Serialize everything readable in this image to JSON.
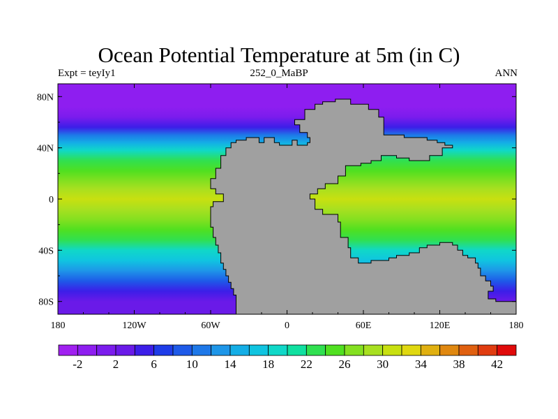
{
  "title": "Ocean Potential Temperature at 5m (in C)",
  "subtitle_left": "Expt = teyIy1",
  "subtitle_center": "252_0_MaBP",
  "subtitle_right": "ANN",
  "land_color": "#a0a0a0",
  "chart_data": {
    "type": "heatmap",
    "projection": "cylindrical-equidistant",
    "variable": "Ocean Potential Temperature at 5m",
    "units": "C",
    "x_range": [
      180,
      -180
    ],
    "y_range": [
      -90,
      90
    ],
    "x_ticks": [
      {
        "value": -180,
        "label": "180"
      },
      {
        "value": -120,
        "label": "120W"
      },
      {
        "value": -60,
        "label": "60W"
      },
      {
        "value": 0,
        "label": "0"
      },
      {
        "value": 60,
        "label": "60E"
      },
      {
        "value": 120,
        "label": "120E"
      },
      {
        "value": 180,
        "label": "180"
      }
    ],
    "y_ticks": [
      {
        "value": 80,
        "label": "80N"
      },
      {
        "value": 40,
        "label": "40N"
      },
      {
        "value": 0,
        "label": "0"
      },
      {
        "value": -40,
        "label": "40S"
      },
      {
        "value": -80,
        "label": "80S"
      }
    ],
    "colorbar": {
      "min": -4,
      "max": 44,
      "step": 2,
      "labeled_values": [
        -2,
        2,
        6,
        10,
        14,
        18,
        22,
        26,
        30,
        34,
        38,
        42
      ],
      "labels": [
        "-2",
        "2",
        "6",
        "10",
        "14",
        "18",
        "22",
        "26",
        "30",
        "34",
        "38",
        "42"
      ],
      "colors": [
        "#a020f0",
        "#8e1ef0",
        "#7b1ced",
        "#6a1ae8",
        "#3c1ee8",
        "#1e3ce8",
        "#1e5ae8",
        "#1e78e8",
        "#1e96e8",
        "#14aee6",
        "#10c4e0",
        "#10d8c8",
        "#10e0a0",
        "#30e050",
        "#50e020",
        "#84e020",
        "#a8e020",
        "#c8e010",
        "#e0d810",
        "#e0b010",
        "#e08810",
        "#e06010",
        "#e03c10",
        "#e00a0a"
      ]
    },
    "temperature_profile": [
      {
        "lat": 90,
        "temp": -2
      },
      {
        "lat": 80,
        "temp": -2
      },
      {
        "lat": 72,
        "temp": -1
      },
      {
        "lat": 64,
        "temp": 1
      },
      {
        "lat": 56,
        "temp": 5
      },
      {
        "lat": 50,
        "temp": 10
      },
      {
        "lat": 44,
        "temp": 15
      },
      {
        "lat": 38,
        "temp": 18.5
      },
      {
        "lat": 30,
        "temp": 22
      },
      {
        "lat": 22,
        "temp": 25
      },
      {
        "lat": 14,
        "temp": 27
      },
      {
        "lat": 8,
        "temp": 29
      },
      {
        "lat": 0,
        "temp": 30
      },
      {
        "lat": -8,
        "temp": 29
      },
      {
        "lat": -16,
        "temp": 27
      },
      {
        "lat": -24,
        "temp": 25
      },
      {
        "lat": -32,
        "temp": 22
      },
      {
        "lat": -40,
        "temp": 19
      },
      {
        "lat": -48,
        "temp": 16
      },
      {
        "lat": -56,
        "temp": 12
      },
      {
        "lat": -64,
        "temp": 8
      },
      {
        "lat": -72,
        "temp": 5
      },
      {
        "lat": -80,
        "temp": 3
      },
      {
        "lat": -90,
        "temp": 2
      }
    ],
    "land_mass": [
      [
        -40,
        -80
      ],
      [
        -40,
        -75
      ],
      [
        -42,
        -75
      ],
      [
        -42,
        -70
      ],
      [
        -44,
        -70
      ],
      [
        -44,
        -65
      ],
      [
        -46,
        -65
      ],
      [
        -46,
        -60
      ],
      [
        -48,
        -60
      ],
      [
        -48,
        -55
      ],
      [
        -50,
        -55
      ],
      [
        -50,
        -50
      ],
      [
        -52,
        -50
      ],
      [
        -52,
        -42
      ],
      [
        -54,
        -42
      ],
      [
        -54,
        -36
      ],
      [
        -56,
        -36
      ],
      [
        -56,
        -30
      ],
      [
        -58,
        -30
      ],
      [
        -58,
        -22
      ],
      [
        -60,
        -22
      ],
      [
        -60,
        -6
      ],
      [
        -58,
        -6
      ],
      [
        -58,
        -2
      ],
      [
        -50,
        -2
      ],
      [
        -50,
        4
      ],
      [
        -56,
        4
      ],
      [
        -56,
        8
      ],
      [
        -60,
        8
      ],
      [
        -60,
        16
      ],
      [
        -56,
        16
      ],
      [
        -56,
        24
      ],
      [
        -52,
        24
      ],
      [
        -52,
        34
      ],
      [
        -48,
        34
      ],
      [
        -48,
        40
      ],
      [
        -44,
        40
      ],
      [
        -44,
        44
      ],
      [
        -40,
        44
      ],
      [
        -40,
        46
      ],
      [
        -32,
        46
      ],
      [
        -32,
        48
      ],
      [
        -22,
        48
      ],
      [
        -22,
        44
      ],
      [
        -18,
        44
      ],
      [
        -18,
        48
      ],
      [
        -10,
        48
      ],
      [
        -10,
        44
      ],
      [
        -6,
        44
      ],
      [
        -6,
        42
      ],
      [
        4,
        42
      ],
      [
        4,
        46
      ],
      [
        8,
        46
      ],
      [
        8,
        42
      ],
      [
        16,
        42
      ],
      [
        16,
        44
      ],
      [
        18,
        44
      ],
      [
        18,
        48
      ],
      [
        16,
        48
      ],
      [
        16,
        52
      ],
      [
        10,
        52
      ],
      [
        10,
        58
      ],
      [
        6,
        58
      ],
      [
        6,
        62
      ],
      [
        14,
        62
      ],
      [
        14,
        70
      ],
      [
        22,
        70
      ],
      [
        22,
        74
      ],
      [
        28,
        74
      ],
      [
        28,
        76
      ],
      [
        38,
        76
      ],
      [
        38,
        78
      ],
      [
        50,
        78
      ],
      [
        50,
        74
      ],
      [
        64,
        74
      ],
      [
        64,
        70
      ],
      [
        72,
        70
      ],
      [
        72,
        64
      ],
      [
        76,
        64
      ],
      [
        76,
        50
      ],
      [
        92,
        50
      ],
      [
        92,
        48
      ],
      [
        110,
        48
      ],
      [
        110,
        46
      ],
      [
        118,
        46
      ],
      [
        118,
        44
      ],
      [
        124,
        44
      ],
      [
        124,
        42
      ],
      [
        130,
        42
      ],
      [
        130,
        40
      ],
      [
        122,
        40
      ],
      [
        122,
        34
      ],
      [
        112,
        34
      ],
      [
        112,
        30
      ],
      [
        96,
        30
      ],
      [
        96,
        32
      ],
      [
        86,
        32
      ],
      [
        86,
        34
      ],
      [
        74,
        34
      ],
      [
        74,
        30
      ],
      [
        66,
        30
      ],
      [
        66,
        28
      ],
      [
        58,
        28
      ],
      [
        58,
        26
      ],
      [
        46,
        26
      ],
      [
        46,
        18
      ],
      [
        40,
        18
      ],
      [
        40,
        12
      ],
      [
        30,
        12
      ],
      [
        30,
        8
      ],
      [
        24,
        8
      ],
      [
        24,
        4
      ],
      [
        18,
        4
      ],
      [
        18,
        0
      ],
      [
        22,
        0
      ],
      [
        22,
        -8
      ],
      [
        28,
        -8
      ],
      [
        28,
        -12
      ],
      [
        40,
        -12
      ],
      [
        40,
        -18
      ],
      [
        42,
        -18
      ],
      [
        42,
        -30
      ],
      [
        48,
        -30
      ],
      [
        48,
        -38
      ],
      [
        50,
        -38
      ],
      [
        50,
        -46
      ],
      [
        56,
        -46
      ],
      [
        56,
        -50
      ],
      [
        66,
        -50
      ],
      [
        66,
        -48
      ],
      [
        80,
        -48
      ],
      [
        80,
        -46
      ],
      [
        86,
        -46
      ],
      [
        86,
        -44
      ],
      [
        96,
        -44
      ],
      [
        96,
        -42
      ],
      [
        104,
        -42
      ],
      [
        104,
        -38
      ],
      [
        110,
        -38
      ],
      [
        110,
        -36
      ],
      [
        120,
        -36
      ],
      [
        120,
        -34
      ],
      [
        130,
        -34
      ],
      [
        130,
        -36
      ],
      [
        134,
        -36
      ],
      [
        134,
        -40
      ],
      [
        138,
        -40
      ],
      [
        138,
        -44
      ],
      [
        142,
        -44
      ],
      [
        142,
        -46
      ],
      [
        148,
        -46
      ],
      [
        148,
        -50
      ],
      [
        150,
        -50
      ],
      [
        150,
        -54
      ],
      [
        152,
        -54
      ],
      [
        152,
        -60
      ],
      [
        156,
        -60
      ],
      [
        156,
        -64
      ],
      [
        160,
        -64
      ],
      [
        160,
        -68
      ],
      [
        162,
        -68
      ],
      [
        162,
        -72
      ],
      [
        158,
        -72
      ],
      [
        158,
        -78
      ],
      [
        164,
        -78
      ],
      [
        164,
        -80
      ],
      [
        180,
        -80
      ],
      [
        180,
        -90
      ],
      [
        -40,
        -90
      ]
    ],
    "inner_sea_ocean": [
      [
        44,
        10
      ],
      [
        48,
        18
      ],
      [
        58,
        22
      ],
      [
        62,
        24
      ],
      [
        70,
        26
      ],
      [
        76,
        26
      ],
      [
        84,
        28
      ],
      [
        92,
        30
      ],
      [
        100,
        28
      ],
      [
        100,
        22
      ],
      [
        96,
        22
      ],
      [
        96,
        2
      ],
      [
        100,
        2
      ],
      [
        100,
        -4
      ],
      [
        104,
        -4
      ],
      [
        104,
        -12
      ],
      [
        106,
        -12
      ],
      [
        106,
        -20
      ],
      [
        96,
        -20
      ],
      [
        96,
        -18
      ],
      [
        90,
        -18
      ],
      [
        90,
        -14
      ],
      [
        82,
        -14
      ],
      [
        82,
        -10
      ],
      [
        78,
        -10
      ],
      [
        78,
        -6
      ],
      [
        74,
        -6
      ],
      [
        74,
        0
      ],
      [
        68,
        0
      ],
      [
        68,
        -2
      ],
      [
        64,
        -2
      ],
      [
        64,
        0
      ],
      [
        70,
        2
      ],
      [
        74,
        4
      ],
      [
        76,
        2
      ],
      [
        80,
        -2
      ],
      [
        84,
        -8
      ],
      [
        88,
        -12
      ],
      [
        92,
        -12
      ],
      [
        98,
        -10
      ],
      [
        100,
        -6
      ],
      [
        102,
        2
      ],
      [
        104,
        10
      ],
      [
        104,
        24
      ],
      [
        108,
        24
      ],
      [
        112,
        26
      ],
      [
        112,
        20
      ],
      [
        110,
        -18
      ],
      [
        100,
        -24
      ],
      [
        90,
        -22
      ],
      [
        82,
        -20
      ],
      [
        74,
        -18
      ],
      [
        64,
        -16
      ],
      [
        54,
        -14
      ],
      [
        44,
        -8
      ],
      [
        40,
        0
      ],
      [
        42,
        6
      ]
    ]
  }
}
